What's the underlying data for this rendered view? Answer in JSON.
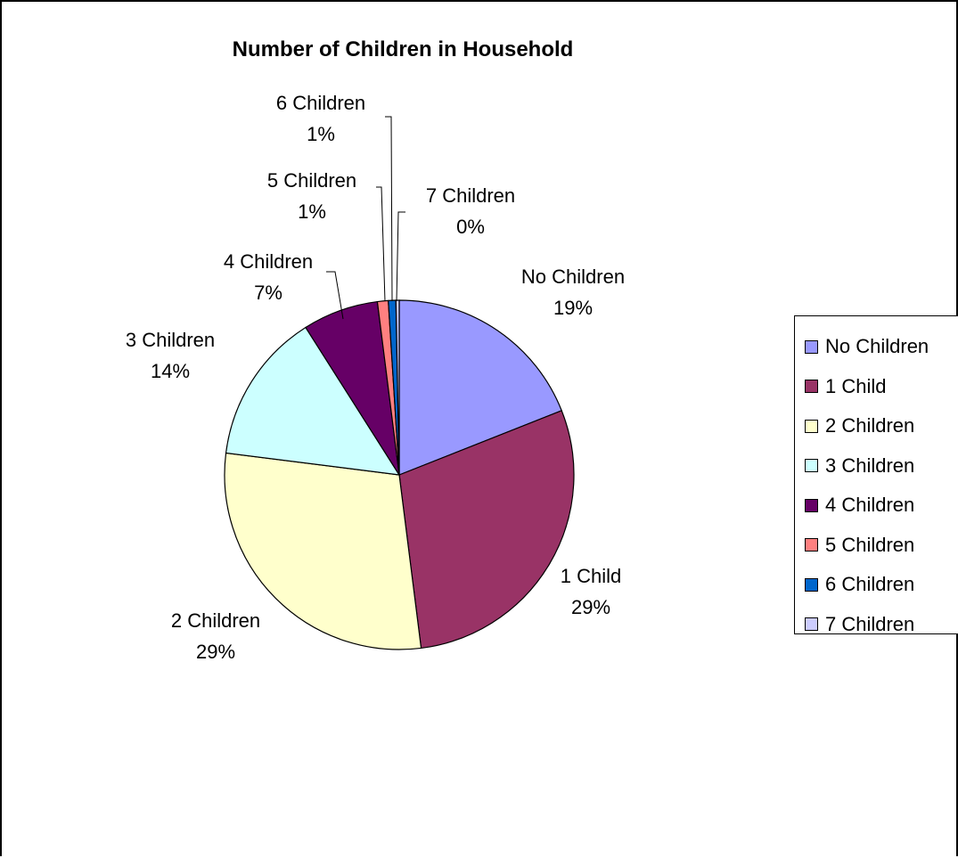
{
  "chart_data": {
    "type": "pie",
    "title": "Number of Children in Household",
    "slices": [
      {
        "name": "No Children",
        "value": 19,
        "label": "19%",
        "color": "#9999FF"
      },
      {
        "name": "1 Child",
        "value": 29,
        "label": "29%",
        "color": "#993366"
      },
      {
        "name": "2 Children",
        "value": 29,
        "label": "29%",
        "color": "#FFFFCC"
      },
      {
        "name": "3 Children",
        "value": 14,
        "label": "14%",
        "color": "#CCFFFF"
      },
      {
        "name": "4 Children",
        "value": 7,
        "label": "7%",
        "color": "#660066"
      },
      {
        "name": "5 Children",
        "value": 1,
        "label": "1%",
        "color": "#FF8080"
      },
      {
        "name": "6 Children",
        "value": 0.7,
        "label": "1%",
        "color": "#0066CC"
      },
      {
        "name": "7 Children",
        "value": 0.3,
        "label": "0%",
        "color": "#CCCCFF"
      }
    ],
    "legend_position": "right"
  }
}
